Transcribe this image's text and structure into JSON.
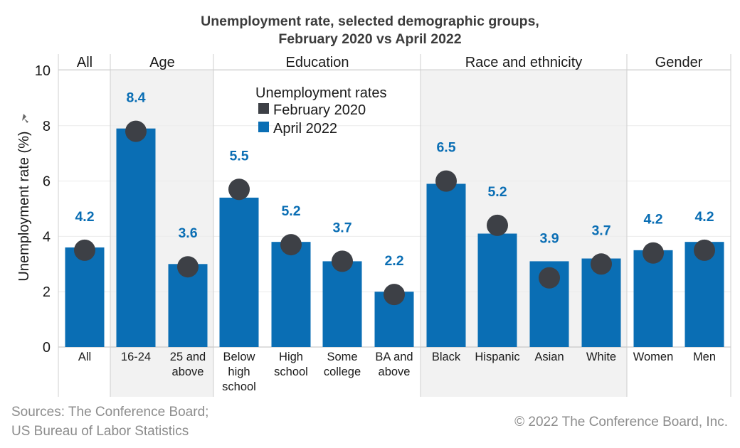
{
  "chart_data": {
    "type": "bar",
    "title_lines": [
      "Unemployment rate, selected demographic groups,",
      "February 2020 vs April 2022"
    ],
    "ylabel": "Unemployment rate (%)",
    "ylim": [
      0,
      10
    ],
    "yticks": [
      "0",
      "2",
      "4",
      "6",
      "8",
      "10"
    ],
    "groups": [
      {
        "name": "All",
        "categories": [
          [
            "All"
          ]
        ]
      },
      {
        "name": "Age",
        "categories": [
          [
            "16-24"
          ],
          [
            "25 and",
            "above"
          ]
        ]
      },
      {
        "name": "Education",
        "categories": [
          [
            "Below",
            "high",
            "school"
          ],
          [
            "High",
            "school"
          ],
          [
            "Some",
            "college"
          ],
          [
            "BA and",
            "above"
          ]
        ]
      },
      {
        "name": "Race and ethnicity",
        "categories": [
          [
            "Black"
          ],
          [
            "Hispanic"
          ],
          [
            "Asian"
          ],
          [
            "White"
          ]
        ]
      },
      {
        "name": "Gender",
        "categories": [
          [
            "Women"
          ],
          [
            "Men"
          ]
        ]
      }
    ],
    "shaded_groups": [
      "Age",
      "Race and ethnicity"
    ],
    "series": [
      {
        "name": "February 2020",
        "marker": "circle",
        "values": [
          3.5,
          7.8,
          2.9,
          5.7,
          3.7,
          3.1,
          1.9,
          6.0,
          4.4,
          2.5,
          3.0,
          3.4,
          3.5
        ]
      },
      {
        "name": "April 2022",
        "marker": "bar",
        "values": [
          3.6,
          7.9,
          3.0,
          5.4,
          3.8,
          3.1,
          2.0,
          5.9,
          4.1,
          3.1,
          3.2,
          3.5,
          3.8
        ]
      }
    ],
    "data_labels": [
      "4.2",
      "8.4",
      "3.6",
      "5.5",
      "5.2",
      "3.7",
      "2.2",
      "6.5",
      "5.2",
      "3.9",
      "3.7",
      "4.2",
      "4.2"
    ],
    "legend": {
      "title": "Unemployment rates",
      "placement": "top-center"
    },
    "grid": true,
    "colors": {
      "bar": "#0a6eb4",
      "dot": "#3d4046",
      "label": "#0a6eb4",
      "shade": "#f2f2f2",
      "rule": "#cfcfcf"
    }
  },
  "footer": {
    "sources_lines": [
      "Sources: The Conference Board;",
      "US Bureau of Labor Statistics"
    ],
    "copyright": "© 2022 The Conference Board, Inc."
  }
}
